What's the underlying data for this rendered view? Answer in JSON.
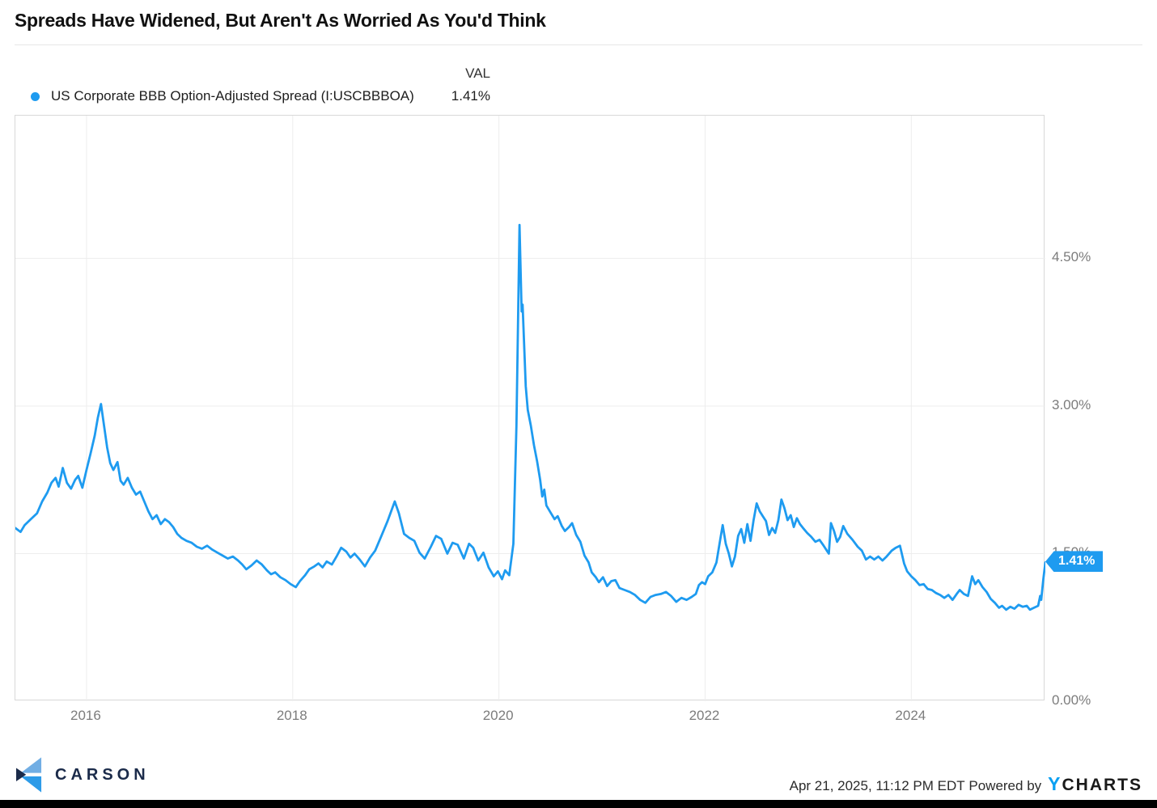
{
  "title": "Spreads Have Widened, But Aren't As Worried As You'd Think",
  "legend": {
    "val_header": "VAL",
    "series_label": "US Corporate BBB Option-Adjusted Spread (I:USCBBBOA)",
    "val": "1.41%"
  },
  "colors": {
    "line_blue": "#1E9BF0",
    "badge_blue": "#1E9BF0",
    "carson_navy": "#1B2B4A",
    "carson_light_blue": "#71AEE4",
    "carson_mid_blue": "#2D9BE8",
    "ycharts_blue": "#0AA0F2",
    "grid_gray": "#ededed",
    "tick_gray": "#7c7c7c"
  },
  "footer": {
    "carson_text": "CARSON",
    "timestamp": "Apr 21, 2025, 11:12 PM EDT",
    "powered_by": "Powered by",
    "ycharts_y": "Y",
    "ycharts_charts": "CHARTS"
  },
  "chart_data": {
    "type": "line",
    "series_name": "US Corporate BBB Option-Adjusted Spread (I:USCBBBOA)",
    "unit": "%",
    "last_value": 1.41,
    "last_value_label": "1.41%",
    "x_range": [
      2015.31,
      2025.3
    ],
    "ylim": [
      0,
      5.95
    ],
    "legend_position": "top-left",
    "grid": true,
    "y_ticks": [
      {
        "value": 0,
        "label": "0.00%",
        "grid": false
      },
      {
        "value": 1.5,
        "label": "1.50%",
        "grid": true
      },
      {
        "value": 3.0,
        "label": "3.00%",
        "grid": true
      },
      {
        "value": 4.5,
        "label": "4.50%",
        "grid": true
      }
    ],
    "x_ticks": [
      {
        "value": 2016,
        "label": "2016"
      },
      {
        "value": 2018,
        "label": "2018"
      },
      {
        "value": 2020,
        "label": "2020"
      },
      {
        "value": 2022,
        "label": "2022"
      },
      {
        "value": 2024,
        "label": "2024"
      }
    ],
    "points": [
      [
        2015.31,
        1.76
      ],
      [
        2015.36,
        1.72
      ],
      [
        2015.4,
        1.79
      ],
      [
        2015.46,
        1.85
      ],
      [
        2015.52,
        1.91
      ],
      [
        2015.57,
        2.03
      ],
      [
        2015.62,
        2.12
      ],
      [
        2015.66,
        2.22
      ],
      [
        2015.7,
        2.27
      ],
      [
        2015.73,
        2.18
      ],
      [
        2015.77,
        2.37
      ],
      [
        2015.81,
        2.22
      ],
      [
        2015.85,
        2.16
      ],
      [
        2015.89,
        2.25
      ],
      [
        2015.92,
        2.29
      ],
      [
        2015.96,
        2.17
      ],
      [
        2016.0,
        2.35
      ],
      [
        2016.04,
        2.52
      ],
      [
        2016.08,
        2.7
      ],
      [
        2016.11,
        2.88
      ],
      [
        2016.14,
        3.02
      ],
      [
        2016.17,
        2.8
      ],
      [
        2016.2,
        2.58
      ],
      [
        2016.23,
        2.42
      ],
      [
        2016.26,
        2.35
      ],
      [
        2016.3,
        2.43
      ],
      [
        2016.33,
        2.24
      ],
      [
        2016.36,
        2.2
      ],
      [
        2016.4,
        2.27
      ],
      [
        2016.44,
        2.17
      ],
      [
        2016.48,
        2.1
      ],
      [
        2016.52,
        2.13
      ],
      [
        2016.56,
        2.03
      ],
      [
        2016.6,
        1.93
      ],
      [
        2016.64,
        1.85
      ],
      [
        2016.68,
        1.89
      ],
      [
        2016.72,
        1.8
      ],
      [
        2016.76,
        1.85
      ],
      [
        2016.8,
        1.82
      ],
      [
        2016.84,
        1.77
      ],
      [
        2016.88,
        1.7
      ],
      [
        2016.92,
        1.66
      ],
      [
        2016.97,
        1.63
      ],
      [
        2017.02,
        1.61
      ],
      [
        2017.07,
        1.57
      ],
      [
        2017.12,
        1.55
      ],
      [
        2017.17,
        1.58
      ],
      [
        2017.22,
        1.54
      ],
      [
        2017.27,
        1.51
      ],
      [
        2017.32,
        1.48
      ],
      [
        2017.37,
        1.45
      ],
      [
        2017.42,
        1.47
      ],
      [
        2017.47,
        1.43
      ],
      [
        2017.51,
        1.39
      ],
      [
        2017.55,
        1.34
      ],
      [
        2017.6,
        1.38
      ],
      [
        2017.65,
        1.43
      ],
      [
        2017.7,
        1.39
      ],
      [
        2017.75,
        1.33
      ],
      [
        2017.79,
        1.29
      ],
      [
        2017.83,
        1.31
      ],
      [
        2017.88,
        1.26
      ],
      [
        2017.93,
        1.23
      ],
      [
        2017.98,
        1.19
      ],
      [
        2018.03,
        1.16
      ],
      [
        2018.07,
        1.22
      ],
      [
        2018.12,
        1.28
      ],
      [
        2018.16,
        1.34
      ],
      [
        2018.21,
        1.37
      ],
      [
        2018.25,
        1.4
      ],
      [
        2018.29,
        1.36
      ],
      [
        2018.33,
        1.42
      ],
      [
        2018.38,
        1.39
      ],
      [
        2018.43,
        1.48
      ],
      [
        2018.47,
        1.56
      ],
      [
        2018.52,
        1.52
      ],
      [
        2018.56,
        1.46
      ],
      [
        2018.6,
        1.5
      ],
      [
        2018.65,
        1.44
      ],
      [
        2018.7,
        1.37
      ],
      [
        2018.75,
        1.46
      ],
      [
        2018.8,
        1.53
      ],
      [
        2018.86,
        1.68
      ],
      [
        2018.92,
        1.83
      ],
      [
        2018.99,
        2.03
      ],
      [
        2019.03,
        1.91
      ],
      [
        2019.08,
        1.7
      ],
      [
        2019.13,
        1.66
      ],
      [
        2019.18,
        1.63
      ],
      [
        2019.23,
        1.51
      ],
      [
        2019.28,
        1.45
      ],
      [
        2019.34,
        1.57
      ],
      [
        2019.39,
        1.68
      ],
      [
        2019.44,
        1.65
      ],
      [
        2019.5,
        1.5
      ],
      [
        2019.55,
        1.61
      ],
      [
        2019.6,
        1.59
      ],
      [
        2019.66,
        1.45
      ],
      [
        2019.71,
        1.6
      ],
      [
        2019.75,
        1.56
      ],
      [
        2019.8,
        1.43
      ],
      [
        2019.85,
        1.51
      ],
      [
        2019.9,
        1.36
      ],
      [
        2019.95,
        1.27
      ],
      [
        2019.99,
        1.32
      ],
      [
        2020.03,
        1.24
      ],
      [
        2020.06,
        1.33
      ],
      [
        2020.1,
        1.28
      ],
      [
        2020.14,
        1.6
      ],
      [
        2020.17,
        2.8
      ],
      [
        2020.2,
        4.84
      ],
      [
        2020.22,
        3.96
      ],
      [
        2020.23,
        4.03
      ],
      [
        2020.26,
        3.2
      ],
      [
        2020.28,
        2.96
      ],
      [
        2020.31,
        2.8
      ],
      [
        2020.34,
        2.6
      ],
      [
        2020.37,
        2.44
      ],
      [
        2020.4,
        2.25
      ],
      [
        2020.42,
        2.08
      ],
      [
        2020.44,
        2.15
      ],
      [
        2020.46,
        1.99
      ],
      [
        2020.5,
        1.92
      ],
      [
        2020.54,
        1.85
      ],
      [
        2020.57,
        1.88
      ],
      [
        2020.61,
        1.78
      ],
      [
        2020.64,
        1.73
      ],
      [
        2020.68,
        1.77
      ],
      [
        2020.71,
        1.81
      ],
      [
        2020.75,
        1.69
      ],
      [
        2020.79,
        1.62
      ],
      [
        2020.83,
        1.48
      ],
      [
        2020.87,
        1.41
      ],
      [
        2020.9,
        1.31
      ],
      [
        2020.94,
        1.26
      ],
      [
        2020.97,
        1.21
      ],
      [
        2021.01,
        1.26
      ],
      [
        2021.05,
        1.17
      ],
      [
        2021.09,
        1.22
      ],
      [
        2021.13,
        1.23
      ],
      [
        2021.17,
        1.15
      ],
      [
        2021.22,
        1.13
      ],
      [
        2021.27,
        1.11
      ],
      [
        2021.32,
        1.08
      ],
      [
        2021.37,
        1.03
      ],
      [
        2021.42,
        1.0
      ],
      [
        2021.47,
        1.06
      ],
      [
        2021.52,
        1.08
      ],
      [
        2021.57,
        1.09
      ],
      [
        2021.62,
        1.11
      ],
      [
        2021.67,
        1.07
      ],
      [
        2021.72,
        1.01
      ],
      [
        2021.77,
        1.05
      ],
      [
        2021.82,
        1.03
      ],
      [
        2021.87,
        1.06
      ],
      [
        2021.91,
        1.09
      ],
      [
        2021.94,
        1.18
      ],
      [
        2021.97,
        1.21
      ],
      [
        2022.0,
        1.19
      ],
      [
        2022.03,
        1.27
      ],
      [
        2022.07,
        1.31
      ],
      [
        2022.11,
        1.41
      ],
      [
        2022.14,
        1.6
      ],
      [
        2022.17,
        1.79
      ],
      [
        2022.2,
        1.6
      ],
      [
        2022.23,
        1.5
      ],
      [
        2022.26,
        1.37
      ],
      [
        2022.29,
        1.47
      ],
      [
        2022.32,
        1.68
      ],
      [
        2022.35,
        1.75
      ],
      [
        2022.38,
        1.61
      ],
      [
        2022.41,
        1.8
      ],
      [
        2022.44,
        1.63
      ],
      [
        2022.47,
        1.84
      ],
      [
        2022.5,
        2.01
      ],
      [
        2022.53,
        1.93
      ],
      [
        2022.56,
        1.88
      ],
      [
        2022.59,
        1.83
      ],
      [
        2022.62,
        1.69
      ],
      [
        2022.65,
        1.76
      ],
      [
        2022.68,
        1.71
      ],
      [
        2022.71,
        1.84
      ],
      [
        2022.74,
        2.05
      ],
      [
        2022.77,
        1.96
      ],
      [
        2022.8,
        1.84
      ],
      [
        2022.83,
        1.89
      ],
      [
        2022.86,
        1.77
      ],
      [
        2022.89,
        1.86
      ],
      [
        2022.92,
        1.8
      ],
      [
        2022.95,
        1.76
      ],
      [
        2022.99,
        1.71
      ],
      [
        2023.03,
        1.67
      ],
      [
        2023.07,
        1.62
      ],
      [
        2023.11,
        1.64
      ],
      [
        2023.15,
        1.58
      ],
      [
        2023.18,
        1.53
      ],
      [
        2023.2,
        1.5
      ],
      [
        2023.22,
        1.81
      ],
      [
        2023.25,
        1.73
      ],
      [
        2023.28,
        1.62
      ],
      [
        2023.31,
        1.67
      ],
      [
        2023.34,
        1.78
      ],
      [
        2023.38,
        1.7
      ],
      [
        2023.43,
        1.64
      ],
      [
        2023.48,
        1.57
      ],
      [
        2023.52,
        1.53
      ],
      [
        2023.56,
        1.44
      ],
      [
        2023.6,
        1.47
      ],
      [
        2023.64,
        1.44
      ],
      [
        2023.68,
        1.47
      ],
      [
        2023.72,
        1.43
      ],
      [
        2023.76,
        1.47
      ],
      [
        2023.81,
        1.53
      ],
      [
        2023.85,
        1.56
      ],
      [
        2023.89,
        1.58
      ],
      [
        2023.93,
        1.4
      ],
      [
        2023.96,
        1.32
      ],
      [
        2024.0,
        1.27
      ],
      [
        2024.04,
        1.23
      ],
      [
        2024.08,
        1.18
      ],
      [
        2024.12,
        1.19
      ],
      [
        2024.16,
        1.14
      ],
      [
        2024.2,
        1.13
      ],
      [
        2024.24,
        1.1
      ],
      [
        2024.28,
        1.08
      ],
      [
        2024.32,
        1.05
      ],
      [
        2024.36,
        1.08
      ],
      [
        2024.4,
        1.03
      ],
      [
        2024.44,
        1.09
      ],
      [
        2024.47,
        1.13
      ],
      [
        2024.51,
        1.09
      ],
      [
        2024.55,
        1.07
      ],
      [
        2024.59,
        1.27
      ],
      [
        2024.62,
        1.19
      ],
      [
        2024.65,
        1.23
      ],
      [
        2024.69,
        1.16
      ],
      [
        2024.73,
        1.11
      ],
      [
        2024.77,
        1.04
      ],
      [
        2024.81,
        1.0
      ],
      [
        2024.85,
        0.95
      ],
      [
        2024.88,
        0.97
      ],
      [
        2024.92,
        0.93
      ],
      [
        2024.96,
        0.96
      ],
      [
        2025.0,
        0.94
      ],
      [
        2025.04,
        0.98
      ],
      [
        2025.08,
        0.96
      ],
      [
        2025.12,
        0.97
      ],
      [
        2025.15,
        0.93
      ],
      [
        2025.19,
        0.95
      ],
      [
        2025.23,
        0.97
      ],
      [
        2025.25,
        1.07
      ],
      [
        2025.26,
        1.03
      ],
      [
        2025.28,
        1.24
      ],
      [
        2025.3,
        1.41
      ]
    ]
  }
}
